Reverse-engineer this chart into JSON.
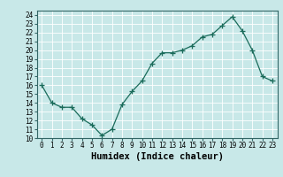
{
  "x": [
    0,
    1,
    2,
    3,
    4,
    5,
    6,
    7,
    8,
    9,
    10,
    11,
    12,
    13,
    14,
    15,
    16,
    17,
    18,
    19,
    20,
    21,
    22,
    23
  ],
  "y": [
    16.0,
    14.0,
    13.5,
    13.5,
    12.2,
    11.5,
    10.3,
    11.0,
    13.8,
    15.3,
    16.5,
    18.5,
    19.7,
    19.7,
    20.0,
    20.5,
    21.5,
    21.8,
    22.8,
    23.8,
    22.2,
    20.0,
    17.0,
    16.5
  ],
  "line_color": "#1a6b5a",
  "marker": "+",
  "marker_size": 4,
  "bg_color": "#c8e8e8",
  "grid_color": "#ffffff",
  "xlabel": "Humidex (Indice chaleur)",
  "xlim": [
    -0.5,
    23.5
  ],
  "ylim": [
    10,
    24.5
  ],
  "yticks": [
    10,
    11,
    12,
    13,
    14,
    15,
    16,
    17,
    18,
    19,
    20,
    21,
    22,
    23,
    24
  ],
  "xticks": [
    0,
    1,
    2,
    3,
    4,
    5,
    6,
    7,
    8,
    9,
    10,
    11,
    12,
    13,
    14,
    15,
    16,
    17,
    18,
    19,
    20,
    21,
    22,
    23
  ],
  "tick_fontsize": 5.5,
  "label_fontsize": 7.5
}
